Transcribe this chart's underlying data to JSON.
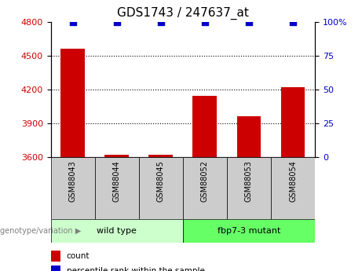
{
  "title": "GDS1743 / 247637_at",
  "categories": [
    "GSM88043",
    "GSM88044",
    "GSM88045",
    "GSM88052",
    "GSM88053",
    "GSM88054"
  ],
  "bar_values": [
    4560,
    3625,
    3625,
    4140,
    3960,
    4220
  ],
  "bar_baseline": 3600,
  "percentile_values": [
    100,
    100,
    100,
    100,
    100,
    100
  ],
  "ylim_left": [
    3600,
    4800
  ],
  "ylim_right": [
    0,
    100
  ],
  "yticks_left": [
    3600,
    3900,
    4200,
    4500,
    4800
  ],
  "yticks_right": [
    0,
    25,
    50,
    75,
    100
  ],
  "bar_color": "#cc0000",
  "point_color": "#0000cc",
  "grid_color": "#000000",
  "group1_label": "wild type",
  "group2_label": "fbp7-3 mutant",
  "group1_color": "#ccffcc",
  "group2_color": "#66ff66",
  "tick_label_color_left": "#cc0000",
  "tick_label_color_right": "#0000cc",
  "legend_count_label": "count",
  "legend_pct_label": "percentile rank within the sample",
  "xlabel_annotation": "genotype/variation",
  "header_bg": "#cccccc",
  "bar_width": 0.55,
  "point_size": 30,
  "figsize": [
    4.61,
    3.45
  ],
  "dpi": 100
}
